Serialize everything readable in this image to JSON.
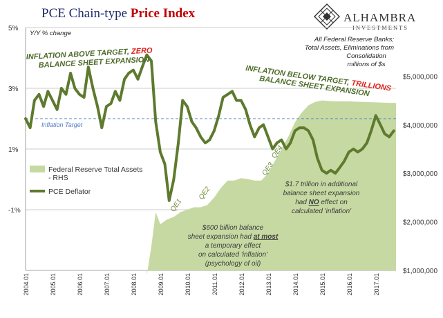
{
  "header": {
    "title_part1": "PCE Chain-type ",
    "title_part2": "Price Index",
    "left_unit": "Y/Y % change",
    "right_note": [
      "All Federal Reserve Banks;",
      "Total Assets, Eliminations from",
      "Consolidation",
      "millions of $s"
    ]
  },
  "logo": {
    "name": "ALHAMBRA",
    "sub": "INVESTMENTS",
    "icon": "diamond-lattice-icon"
  },
  "annotations": {
    "above_line1_a": "INFLATION ABOVE TARGET, ",
    "above_line1_b": "ZERO",
    "above_line2": "BALANCE SHEET EXPANSION",
    "below_line1_a": "INFLATION BELOW TARGET, ",
    "below_line1_b": "TRILLIONS",
    "below_line2": "BALANCE SHEET EXPANSION",
    "target_label": "Inflation Target",
    "qe_labels": [
      "QE1",
      "QE2",
      "QE3",
      "QE4"
    ],
    "note_600": [
      "$600 billion balance",
      "sheet expansion had ",
      "at most",
      " a temporary effect",
      "on calculated 'inflation'",
      "(psychology of oil)"
    ],
    "note_17": [
      "$1.7 trillion in additional",
      "balance sheet expansion",
      "had ",
      "NO",
      " effect on",
      "calculated 'inflation'"
    ]
  },
  "legend": {
    "assets_line1": "Federal Reserve Total Assets",
    "assets_line2": "- RHS",
    "pce": "PCE Deflator"
  },
  "colors": {
    "pce_line": "#5e7a2e",
    "assets_fill": "#c6d9a2",
    "target_line": "#5b80c5",
    "grid": "#bbbbbb",
    "title_blue": "#1f2a6b",
    "title_red": "#c00000"
  },
  "chart_data": {
    "type": "line",
    "title": "PCE Chain-type Price Index",
    "y_left": {
      "label": "Y/Y % change",
      "ticks": [
        "-1%",
        "1%",
        "3%",
        "5%"
      ],
      "tick_values": [
        -1,
        1,
        3,
        5
      ],
      "range": [
        -3,
        5
      ]
    },
    "y_right": {
      "label": "millions of $s",
      "ticks": [
        "$1,000,000",
        "$2,000,000",
        "$3,000,000",
        "$4,000,000",
        "$5,000,000"
      ],
      "tick_values": [
        1000000,
        2000000,
        3000000,
        4000000,
        5000000
      ],
      "range": [
        1000000,
        6000000
      ]
    },
    "x_range": [
      2004.0,
      2017.75
    ],
    "x_ticks": [
      "2004.01",
      "2005.01",
      "2006.01",
      "2007.01",
      "2008.01",
      "2009.01",
      "2010.01",
      "2011.01",
      "2012.01",
      "2013.01",
      "2014.01",
      "2015.01",
      "2016.01",
      "2017.01"
    ],
    "x_tick_values": [
      2004,
      2005,
      2006,
      2007,
      2008,
      2009,
      2010,
      2011,
      2012,
      2013,
      2014,
      2015,
      2016,
      2017
    ],
    "inflation_target": 2.0,
    "qe_positions": [
      {
        "label": "QE1",
        "x": 2009.5,
        "assets": 2200000
      },
      {
        "label": "QE2",
        "x": 2010.55,
        "assets": 2450000
      },
      {
        "label": "QE3",
        "x": 2012.9,
        "assets": 2950000
      },
      {
        "label": "QE4",
        "x": 2013.25,
        "assets": 3300000
      }
    ],
    "series": [
      {
        "name": "PCE Deflator",
        "axis": "left",
        "x": [
          2004.0,
          2004.17,
          2004.33,
          2004.5,
          2004.67,
          2004.83,
          2005.0,
          2005.17,
          2005.33,
          2005.5,
          2005.67,
          2005.83,
          2006.0,
          2006.17,
          2006.33,
          2006.5,
          2006.67,
          2006.83,
          2007.0,
          2007.17,
          2007.33,
          2007.5,
          2007.67,
          2007.83,
          2008.0,
          2008.17,
          2008.33,
          2008.5,
          2008.67,
          2008.83,
          2009.0,
          2009.17,
          2009.33,
          2009.5,
          2009.67,
          2009.83,
          2010.0,
          2010.17,
          2010.33,
          2010.5,
          2010.67,
          2010.83,
          2011.0,
          2011.17,
          2011.33,
          2011.5,
          2011.67,
          2011.83,
          2012.0,
          2012.17,
          2012.33,
          2012.5,
          2012.67,
          2012.83,
          2013.0,
          2013.17,
          2013.33,
          2013.5,
          2013.67,
          2013.83,
          2014.0,
          2014.17,
          2014.33,
          2014.5,
          2014.67,
          2014.83,
          2015.0,
          2015.17,
          2015.33,
          2015.5,
          2015.67,
          2015.83,
          2016.0,
          2016.17,
          2016.33,
          2016.5,
          2016.67,
          2016.83,
          2017.0,
          2017.17,
          2017.33,
          2017.5,
          2017.67
        ],
        "values": [
          2.0,
          1.7,
          2.6,
          2.8,
          2.4,
          2.9,
          2.6,
          2.3,
          3.0,
          2.8,
          3.5,
          3.0,
          2.8,
          2.7,
          3.7,
          3.0,
          2.4,
          1.7,
          2.4,
          2.5,
          2.9,
          2.6,
          3.3,
          3.5,
          3.6,
          3.3,
          3.7,
          4.1,
          3.9,
          1.9,
          0.9,
          0.5,
          -0.7,
          0.0,
          1.2,
          2.6,
          2.4,
          1.9,
          1.7,
          1.4,
          1.2,
          1.3,
          1.6,
          2.1,
          2.7,
          2.8,
          2.9,
          2.6,
          2.6,
          2.3,
          1.8,
          1.4,
          1.7,
          1.8,
          1.4,
          1.0,
          1.2,
          1.3,
          1.0,
          1.2,
          1.6,
          1.7,
          1.7,
          1.6,
          1.3,
          0.7,
          0.3,
          0.2,
          0.3,
          0.2,
          0.4,
          0.6,
          0.9,
          1.0,
          0.9,
          1.0,
          1.2,
          1.6,
          2.1,
          1.8,
          1.5,
          1.4,
          1.6
        ]
      },
      {
        "name": "Federal Reserve Total Assets - RHS",
        "axis": "right",
        "x": [
          2008.5,
          2008.67,
          2008.83,
          2009.0,
          2009.25,
          2009.5,
          2009.75,
          2010.0,
          2010.25,
          2010.5,
          2010.75,
          2011.0,
          2011.25,
          2011.5,
          2011.75,
          2012.0,
          2012.25,
          2012.5,
          2012.75,
          2013.0,
          2013.25,
          2013.5,
          2013.75,
          2014.0,
          2014.25,
          2014.5,
          2014.75,
          2015.0,
          2015.5,
          2016.0,
          2016.5,
          2017.0,
          2017.5,
          2017.75
        ],
        "values": [
          900000,
          1500000,
          2200000,
          1950000,
          2050000,
          2100000,
          2200000,
          2250000,
          2300000,
          2300000,
          2350000,
          2500000,
          2700000,
          2850000,
          2850000,
          2900000,
          2880000,
          2850000,
          2850000,
          3000000,
          3250000,
          3500000,
          3750000,
          4050000,
          4250000,
          4400000,
          4470000,
          4500000,
          4480000,
          4480000,
          4470000,
          4460000,
          4450000,
          4450000
        ]
      }
    ]
  }
}
